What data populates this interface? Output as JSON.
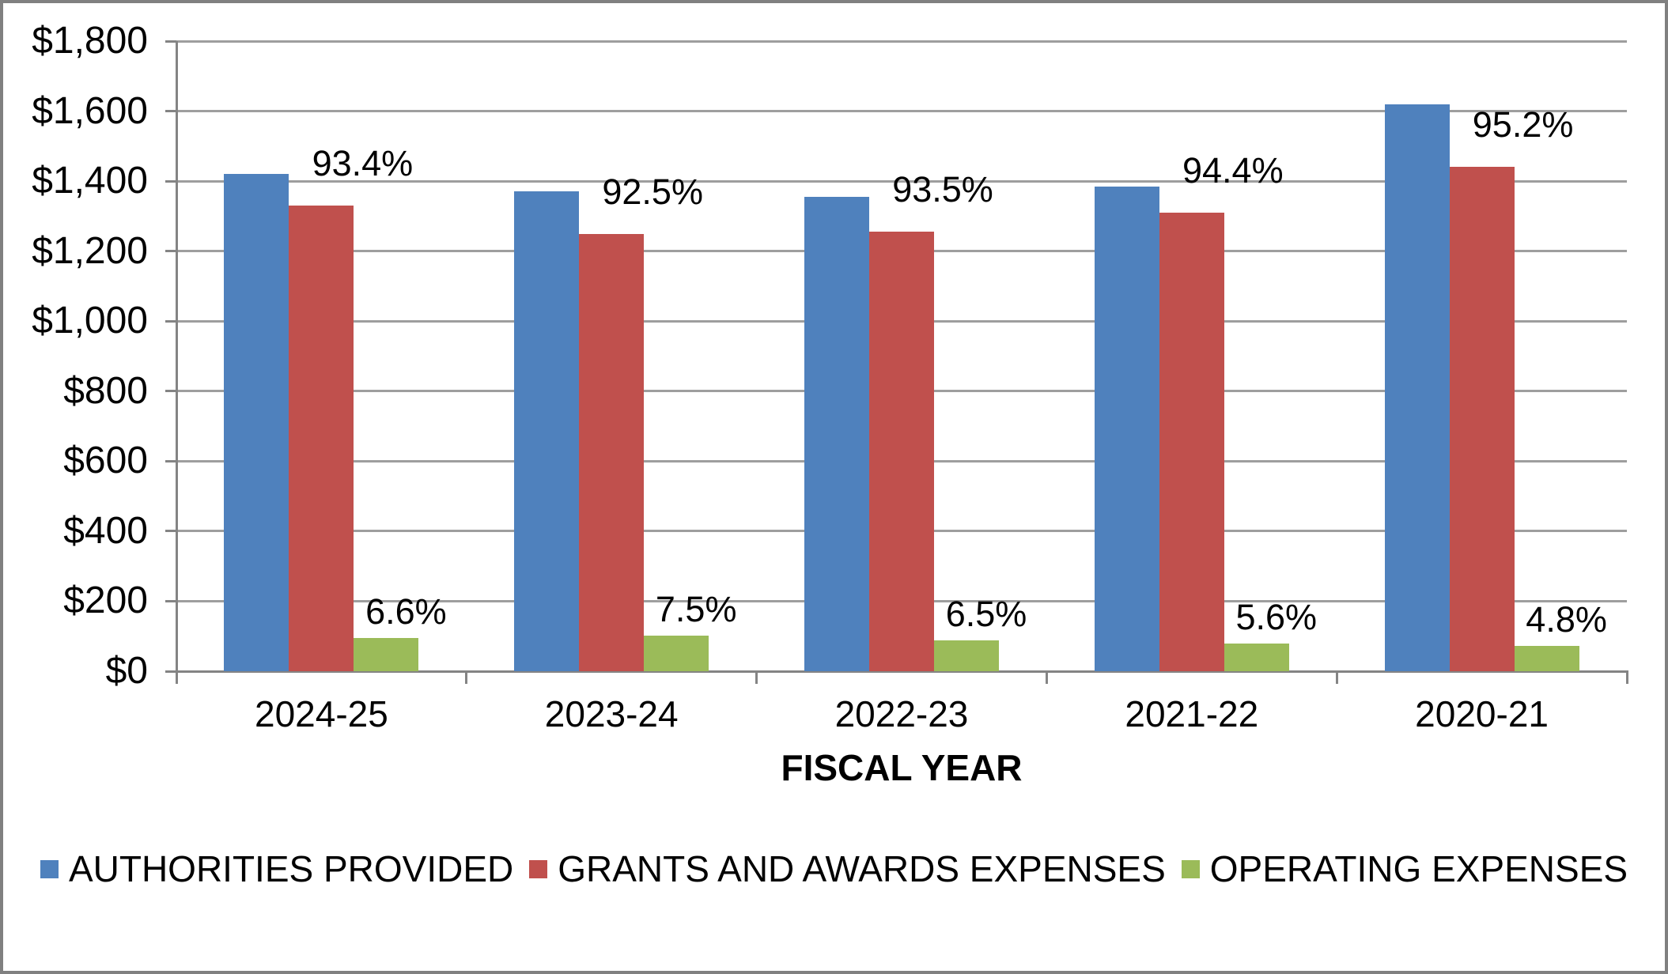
{
  "chart_data": {
    "type": "bar",
    "title": "",
    "xlabel": "FISCAL YEAR",
    "ylabel": "",
    "categories": [
      "2024-25",
      "2023-24",
      "2022-23",
      "2021-22",
      "2020-21"
    ],
    "series": [
      {
        "name": "AUTHORITIES PROVIDED",
        "color": "#4F81BD",
        "values": [
          1420,
          1370,
          1355,
          1385,
          1620
        ]
      },
      {
        "name": "GRANTS AND AWARDS EXPENSES",
        "color": "#C0504D",
        "values": [
          1330,
          1250,
          1255,
          1310,
          1440
        ],
        "point_labels": [
          "93.4%",
          "92.5%",
          "93.5%",
          "94.4%",
          "95.2%"
        ]
      },
      {
        "name": "OPERATING EXPENSES",
        "color": "#9BBB59",
        "values": [
          94,
          101,
          87,
          78,
          72
        ],
        "point_labels": [
          "6.6%",
          "7.5%",
          "6.5%",
          "5.6%",
          "4.8%"
        ]
      }
    ],
    "ylim": [
      0,
      1800
    ],
    "y_tick_step": 200,
    "y_tick_labels": [
      "$0",
      "$200",
      "$400",
      "$600",
      "$800",
      "$1,000",
      "$1,200",
      "$1,400",
      "$1,600",
      "$1,800"
    ],
    "grid": "horizontal",
    "legend_position": "bottom"
  },
  "colors": {
    "grid": "#9E9E9E",
    "axis": "#848484",
    "border": "#808080",
    "text": "#000000"
  }
}
